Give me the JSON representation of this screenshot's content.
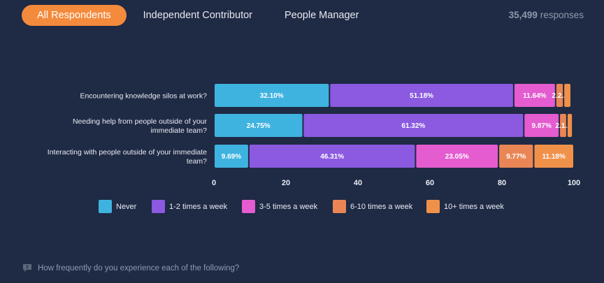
{
  "tabs": [
    {
      "label": "All Respondents",
      "active": true
    },
    {
      "label": "Independent Contributor",
      "active": false
    },
    {
      "label": "People Manager",
      "active": false
    }
  ],
  "responses": {
    "count": "35,499",
    "label": "responses"
  },
  "footer": {
    "question": "How frequently do you experience each of the following?",
    "icon": "chat-question-icon"
  },
  "colors": {
    "background": "#1f2a44",
    "accent": "#f48a3c"
  },
  "chart_data": {
    "type": "bar",
    "orientation": "horizontal",
    "stacked": true,
    "categories": [
      [
        "Encountering knowledge silos at work?"
      ],
      [
        "Needing help from people outside of your",
        "immediate team?"
      ],
      [
        "Interacting with people outside of your immediate",
        "team?"
      ]
    ],
    "series": [
      {
        "name": "Never",
        "color": "#3fb3e0",
        "values": [
          32.1,
          24.75,
          9.69
        ],
        "labels": [
          "32.10%",
          "24.75%",
          "9.69%"
        ]
      },
      {
        "name": "1-2 times a week",
        "color": "#8b5ae0",
        "values": [
          51.18,
          61.32,
          46.31
        ],
        "labels": [
          "51.18%",
          "61.32%",
          "46.31%"
        ]
      },
      {
        "name": "3-5 times a week",
        "color": "#e45ccf",
        "values": [
          11.64,
          9.87,
          23.05
        ],
        "labels": [
          "11.64%",
          "9.87%",
          "23.05%"
        ]
      },
      {
        "name": "6-10 times a week",
        "color": "#ea8655",
        "values": [
          2.2,
          2.1,
          9.77
        ],
        "labels": [
          "2.2...",
          "2.1...",
          "9.77%"
        ]
      },
      {
        "name": "10+ times a week",
        "color": "#f0914a",
        "values": [
          2.1,
          1.6,
          11.18
        ],
        "labels": [
          "",
          "",
          "11.18%"
        ]
      }
    ],
    "xlim": [
      0,
      100
    ],
    "xticks": [
      0,
      20,
      40,
      60,
      80,
      100
    ],
    "legend": "bottom"
  }
}
